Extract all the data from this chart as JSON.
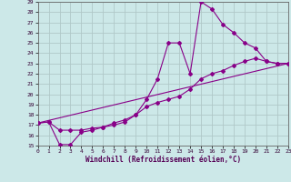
{
  "xlabel": "Windchill (Refroidissement éolien,°C)",
  "background_color": "#cce8e8",
  "grid_color": "#b0c8c8",
  "line_color": "#880088",
  "x_ticks": [
    0,
    1,
    2,
    3,
    4,
    5,
    6,
    7,
    8,
    9,
    10,
    11,
    12,
    13,
    14,
    15,
    16,
    17,
    18,
    19,
    20,
    21,
    22,
    23
  ],
  "y_ticks": [
    15,
    16,
    17,
    18,
    19,
    20,
    21,
    22,
    23,
    24,
    25,
    26,
    27,
    28,
    29
  ],
  "xlim": [
    0,
    23
  ],
  "ylim": [
    15,
    29
  ],
  "series1": {
    "x": [
      0,
      1,
      2,
      3,
      4,
      5,
      6,
      7,
      8,
      9,
      10,
      11,
      12,
      13,
      14,
      15,
      16,
      17,
      18,
      19,
      20,
      21,
      22,
      23
    ],
    "y": [
      17.2,
      17.3,
      15.1,
      15.1,
      16.3,
      16.5,
      16.8,
      17.0,
      17.3,
      18.0,
      19.5,
      21.5,
      25.0,
      25.0,
      22.0,
      29.0,
      28.3,
      26.8,
      26.0,
      25.0,
      24.5,
      23.2,
      23.0,
      23.0
    ]
  },
  "series2": {
    "x": [
      0,
      1,
      2,
      3,
      4,
      5,
      6,
      7,
      8,
      9,
      10,
      11,
      12,
      13,
      14,
      15,
      16,
      17,
      18,
      19,
      20,
      21,
      22,
      23
    ],
    "y": [
      17.2,
      17.3,
      16.5,
      16.5,
      16.5,
      16.7,
      16.8,
      17.2,
      17.5,
      18.0,
      18.8,
      19.2,
      19.5,
      19.8,
      20.5,
      21.5,
      22.0,
      22.3,
      22.8,
      23.2,
      23.5,
      23.2,
      23.0,
      23.0
    ]
  },
  "series3": {
    "x": [
      0,
      23
    ],
    "y": [
      17.2,
      23.0
    ]
  }
}
